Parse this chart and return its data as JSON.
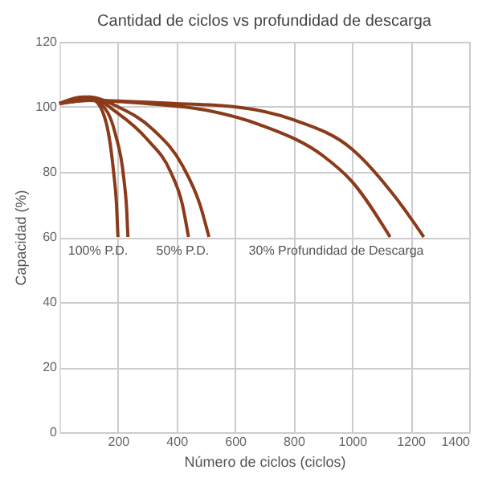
{
  "chart_data": {
    "type": "line",
    "title": "Cantidad de ciclos vs profundidad de descarga",
    "xlabel": "Número de ciclos (ciclos)",
    "ylabel": "Capacidad (%)",
    "xlim": [
      0,
      1400
    ],
    "xticks": [
      200,
      400,
      600,
      800,
      1000,
      1200,
      1400
    ],
    "ylim": [
      0,
      120
    ],
    "yticks": [
      0,
      20,
      40,
      60,
      80,
      100,
      120
    ],
    "grid": true,
    "line_style": "solid",
    "series": [
      {
        "color": "#8b3a1a",
        "x": [
          0,
          80,
          120,
          160,
          185,
          195,
          200
        ],
        "values": [
          101,
          103,
          102,
          95,
          80,
          70,
          60
        ]
      },
      {
        "color": "#8b3a1a",
        "x": [
          0,
          90,
          140,
          190,
          220,
          230,
          234
        ],
        "values": [
          101,
          103,
          101,
          92,
          78,
          68,
          60
        ]
      },
      {
        "color": "#8b3a1a",
        "x": [
          0,
          100,
          200,
          300,
          380,
          420,
          441
        ],
        "values": [
          101,
          103,
          98,
          90,
          80,
          70,
          60
        ]
      },
      {
        "color": "#8b3a1a",
        "x": [
          0,
          100,
          200,
          320,
          420,
          480,
          511
        ],
        "values": [
          101,
          103,
          100,
          93,
          82,
          70,
          60
        ]
      },
      {
        "color": "#8b3a1a",
        "x": [
          0,
          100,
          300,
          500,
          700,
          900,
          1000,
          1130
        ],
        "values": [
          101,
          102,
          101,
          99,
          94,
          85,
          77,
          60
        ]
      },
      {
        "color": "#8b3a1a",
        "x": [
          0,
          100,
          400,
          600,
          800,
          1000,
          1150,
          1245
        ],
        "values": [
          101,
          102,
          101,
          100,
          96,
          87,
          72,
          60
        ]
      }
    ],
    "annotations": [
      "100% P.D.",
      "50% P.D.",
      "30% Profundidad de Descarga"
    ]
  }
}
